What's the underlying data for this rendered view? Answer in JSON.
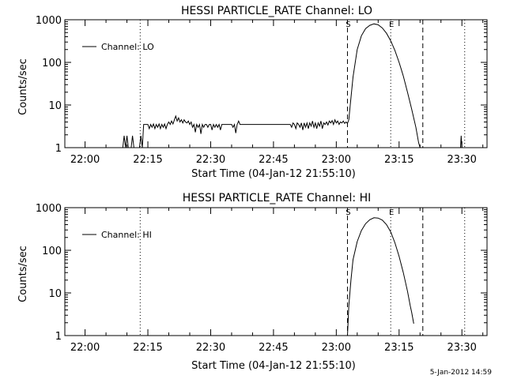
{
  "chart_data": [
    {
      "type": "line",
      "title": "HESSI PARTICLE_RATE Channel: LO",
      "xlabel": "Start Time (04-Jan-12 21:55:10)",
      "ylabel": "Counts/sec",
      "yscale": "log",
      "ylim": [
        1,
        1000
      ],
      "xlim": [
        "21:55:10",
        "23:36:00"
      ],
      "x_ticks": [
        "22:00",
        "22:15",
        "22:30",
        "22:45",
        "23:00",
        "23:15",
        "23:30"
      ],
      "y_ticks": [
        "1",
        "10",
        "100",
        "1000"
      ],
      "legend": {
        "position": "top-left",
        "entries": [
          "Channel: LO"
        ]
      },
      "markers": [
        {
          "label": "S",
          "time": "23:02:40",
          "style": "dashed"
        },
        {
          "label": "E",
          "time": "23:13:00",
          "style": "dotted"
        },
        {
          "label": "",
          "time": "23:20:40",
          "style": "dashed"
        },
        {
          "label": "",
          "time": "22:13:10",
          "style": "dotted"
        },
        {
          "label": "",
          "time": "23:30:40",
          "style": "dotted"
        }
      ],
      "series": [
        {
          "name": "Channel: LO",
          "points": [
            [
              "22:09:00",
              1
            ],
            [
              "22:09:20",
              1.9
            ],
            [
              "22:09:40",
              1
            ],
            [
              "22:10:00",
              1.9
            ],
            [
              "22:10:20",
              1
            ],
            [
              "22:11:00",
              1
            ],
            [
              "22:11:20",
              1.9
            ],
            [
              "22:11:40",
              1
            ],
            [
              "22:12:00",
              1
            ],
            [
              "22:13:00",
              1
            ],
            [
              "22:13:20",
              1.9
            ],
            [
              "22:13:40",
              1
            ],
            [
              "22:14:00",
              3.5
            ],
            [
              "22:15:00",
              3.5
            ],
            [
              "22:15:20",
              2.8
            ],
            [
              "22:15:40",
              3.5
            ],
            [
              "22:16:00",
              3
            ],
            [
              "22:16:20",
              3.6
            ],
            [
              "22:16:40",
              2.8
            ],
            [
              "22:17:00",
              3.5
            ],
            [
              "22:17:20",
              3
            ],
            [
              "22:17:40",
              3.6
            ],
            [
              "22:18:00",
              2.8
            ],
            [
              "22:18:20",
              3.5
            ],
            [
              "22:18:40",
              3
            ],
            [
              "22:19:00",
              3.6
            ],
            [
              "22:19:20",
              2.8
            ],
            [
              "22:19:40",
              3.5
            ],
            [
              "22:20:00",
              4
            ],
            [
              "22:20:20",
              3.5
            ],
            [
              "22:20:40",
              4.2
            ],
            [
              "22:21:00",
              3.6
            ],
            [
              "22:21:20",
              4.5
            ],
            [
              "22:21:40",
              5.5
            ],
            [
              "22:22:00",
              4.2
            ],
            [
              "22:22:20",
              5
            ],
            [
              "22:22:40",
              4
            ],
            [
              "22:23:00",
              4.5
            ],
            [
              "22:23:20",
              3.8
            ],
            [
              "22:23:40",
              4.5
            ],
            [
              "22:24:00",
              4
            ],
            [
              "22:24:20",
              3.8
            ],
            [
              "22:24:40",
              4.2
            ],
            [
              "22:25:00",
              3.5
            ],
            [
              "22:25:20",
              4
            ],
            [
              "22:25:40",
              3
            ],
            [
              "22:26:00",
              3.5
            ],
            [
              "22:26:20",
              2.3
            ],
            [
              "22:26:40",
              3.5
            ],
            [
              "22:27:00",
              3
            ],
            [
              "22:27:20",
              3.5
            ],
            [
              "22:27:40",
              2.1
            ],
            [
              "22:28:00",
              3.5
            ],
            [
              "22:28:20",
              3
            ],
            [
              "22:28:40",
              3.5
            ],
            [
              "22:29:00",
              3.5
            ],
            [
              "22:29:20",
              3
            ],
            [
              "22:29:40",
              3.5
            ],
            [
              "22:30:00",
              3.5
            ],
            [
              "22:30:20",
              2.6
            ],
            [
              "22:30:40",
              3.5
            ],
            [
              "22:31:00",
              3
            ],
            [
              "22:31:20",
              3.5
            ],
            [
              "22:31:40",
              3
            ],
            [
              "22:32:00",
              3.5
            ],
            [
              "22:32:20",
              2.6
            ],
            [
              "22:32:40",
              3.5
            ],
            [
              "22:33:00",
              3.5
            ],
            [
              "22:34:00",
              3.5
            ],
            [
              "22:35:00",
              3.5
            ],
            [
              "22:35:20",
              3
            ],
            [
              "22:35:40",
              3.5
            ],
            [
              "22:36:00",
              2.2
            ],
            [
              "22:36:20",
              3.5
            ],
            [
              "22:36:40",
              4.2
            ],
            [
              "22:37:00",
              3.5
            ],
            [
              "22:38:00",
              3.5
            ],
            [
              "22:39:00",
              3.5
            ],
            [
              "22:40:00",
              3.5
            ],
            [
              "22:41:00",
              3.5
            ],
            [
              "22:42:00",
              3.5
            ],
            [
              "22:43:00",
              3.5
            ],
            [
              "22:44:00",
              3.5
            ],
            [
              "22:45:00",
              3.5
            ],
            [
              "22:46:00",
              3.5
            ],
            [
              "22:47:00",
              3.5
            ],
            [
              "22:48:00",
              3.5
            ],
            [
              "22:49:00",
              3.5
            ],
            [
              "22:49:20",
              3
            ],
            [
              "22:49:40",
              3.8
            ],
            [
              "22:50:00",
              3.5
            ],
            [
              "22:50:20",
              2.8
            ],
            [
              "22:50:40",
              3.8
            ],
            [
              "22:51:00",
              3.5
            ],
            [
              "22:51:20",
              3
            ],
            [
              "22:51:40",
              3.8
            ],
            [
              "22:52:00",
              2.6
            ],
            [
              "22:52:20",
              3.8
            ],
            [
              "22:52:40",
              3
            ],
            [
              "22:53:00",
              3.8
            ],
            [
              "22:53:20",
              2.8
            ],
            [
              "22:53:40",
              3.8
            ],
            [
              "22:54:00",
              3.2
            ],
            [
              "22:54:20",
              4.2
            ],
            [
              "22:54:40",
              3
            ],
            [
              "22:55:00",
              3.8
            ],
            [
              "22:55:20",
              2.8
            ],
            [
              "22:55:40",
              3.8
            ],
            [
              "22:56:00",
              3.2
            ],
            [
              "22:56:20",
              4.2
            ],
            [
              "22:56:40",
              2.8
            ],
            [
              "22:57:00",
              3.8
            ],
            [
              "22:57:20",
              3.5
            ],
            [
              "22:57:40",
              4
            ],
            [
              "22:58:00",
              3.4
            ],
            [
              "22:58:20",
              4.2
            ],
            [
              "22:58:40",
              3.8
            ],
            [
              "22:59:00",
              4.3
            ],
            [
              "22:59:20",
              3.5
            ],
            [
              "22:59:40",
              4.5
            ],
            [
              "23:00:00",
              3.8
            ],
            [
              "23:00:20",
              4.2
            ],
            [
              "23:00:40",
              3.5
            ],
            [
              "23:01:00",
              4
            ],
            [
              "23:01:20",
              3.8
            ],
            [
              "23:01:40",
              4.2
            ],
            [
              "23:02:00",
              3.7
            ],
            [
              "23:02:20",
              4
            ],
            [
              "23:02:40",
              3.7
            ],
            [
              "23:03:00",
              4.5
            ],
            [
              "23:03:20",
              10
            ],
            [
              "23:04:00",
              45
            ],
            [
              "23:05:00",
              200
            ],
            [
              "23:06:00",
              420
            ],
            [
              "23:07:00",
              620
            ],
            [
              "23:08:00",
              740
            ],
            [
              "23:09:00",
              800
            ],
            [
              "23:10:00",
              760
            ],
            [
              "23:11:00",
              640
            ],
            [
              "23:12:00",
              480
            ],
            [
              "23:13:00",
              320
            ],
            [
              "23:14:00",
              190
            ],
            [
              "23:15:00",
              100
            ],
            [
              "23:16:00",
              48
            ],
            [
              "23:17:00",
              20
            ],
            [
              "23:18:00",
              8
            ],
            [
              "23:19:00",
              3
            ],
            [
              "23:19:40",
              1.3
            ],
            [
              "23:20:00",
              1
            ],
            [
              "23:29:40",
              1
            ],
            [
              "23:29:50",
              1.9
            ],
            [
              "23:30:00",
              1
            ]
          ]
        }
      ]
    },
    {
      "type": "line",
      "title": "HESSI PARTICLE_RATE Channel: HI",
      "xlabel": "Start Time (04-Jan-12 21:55:10)",
      "ylabel": "Counts/sec",
      "yscale": "log",
      "ylim": [
        1,
        1000
      ],
      "xlim": [
        "21:55:10",
        "23:36:00"
      ],
      "x_ticks": [
        "22:00",
        "22:15",
        "22:30",
        "22:45",
        "23:00",
        "23:15",
        "23:30"
      ],
      "y_ticks": [
        "1",
        "10",
        "100",
        "1000"
      ],
      "legend": {
        "position": "top-left",
        "entries": [
          "Channel: HI"
        ]
      },
      "markers": [
        {
          "label": "S",
          "time": "23:02:40",
          "style": "dashed"
        },
        {
          "label": "E",
          "time": "23:13:00",
          "style": "dotted"
        },
        {
          "label": "",
          "time": "23:20:40",
          "style": "dashed"
        },
        {
          "label": "",
          "time": "22:13:10",
          "style": "dotted"
        },
        {
          "label": "",
          "time": "23:30:40",
          "style": "dotted"
        }
      ],
      "series": [
        {
          "name": "Channel: HI",
          "points": [
            [
              "23:02:40",
              1
            ],
            [
              "23:03:00",
              5
            ],
            [
              "23:03:30",
              20
            ],
            [
              "23:04:00",
              60
            ],
            [
              "23:05:00",
              160
            ],
            [
              "23:06:00",
              290
            ],
            [
              "23:07:00",
              420
            ],
            [
              "23:08:00",
              520
            ],
            [
              "23:09:00",
              580
            ],
            [
              "23:10:00",
              570
            ],
            [
              "23:11:00",
              510
            ],
            [
              "23:12:00",
              400
            ],
            [
              "23:13:00",
              270
            ],
            [
              "23:14:00",
              150
            ],
            [
              "23:15:00",
              72
            ],
            [
              "23:16:00",
              30
            ],
            [
              "23:17:00",
              11
            ],
            [
              "23:17:40",
              5
            ],
            [
              "23:18:00",
              3.5
            ],
            [
              "23:18:30",
              1.9
            ]
          ]
        }
      ]
    }
  ],
  "footer": {
    "timestamp": "5-Jan-2012 14:59"
  }
}
